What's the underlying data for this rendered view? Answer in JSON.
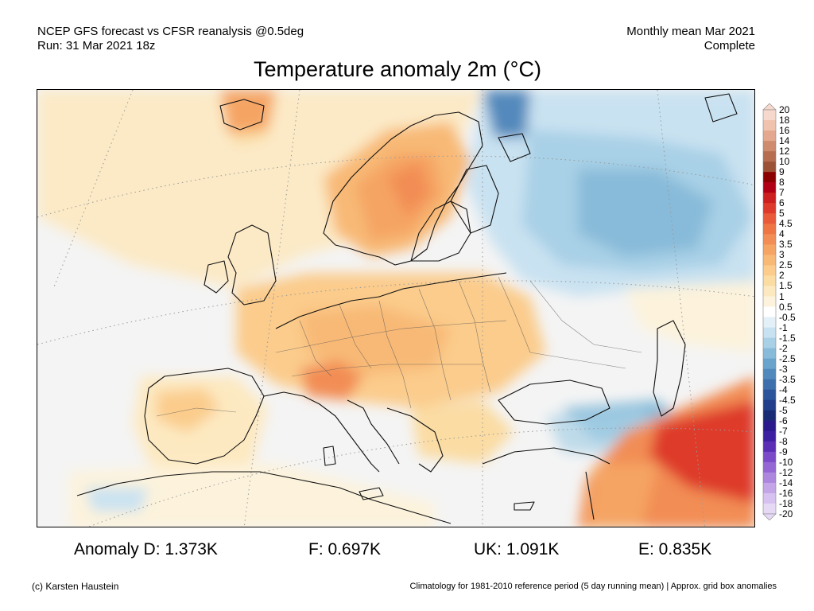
{
  "header": {
    "line1_left": "NCEP GFS forecast vs CFSR reanalysis @0.5deg",
    "line2_left": "Run: 31 Mar 2021 18z",
    "line1_right": "Monthly mean Mar 2021",
    "line2_right": "Complete"
  },
  "title": "Temperature anomaly 2m (°C)",
  "colorbar": {
    "labels": [
      "20",
      "18",
      "16",
      "14",
      "12",
      "10",
      "9",
      "8",
      "7",
      "6",
      "5",
      "4.5",
      "4",
      "3.5",
      "3",
      "2.5",
      "2",
      "1.5",
      "1",
      "0.5",
      "-0.5",
      "-1",
      "-1.5",
      "-2",
      "-2.5",
      "-3",
      "-3.5",
      "-4",
      "-4.5",
      "-5",
      "-6",
      "-7",
      "-8",
      "-9",
      "-10",
      "-12",
      "-14",
      "-16",
      "-18",
      "-20"
    ],
    "colors": [
      "#f6d9cc",
      "#efc3ae",
      "#e3a88d",
      "#cf8b6d",
      "#b66e51",
      "#9c5237",
      "#8b0000",
      "#b10016",
      "#cc1f1f",
      "#de3a2c",
      "#e85a3a",
      "#ee7645",
      "#f28d55",
      "#f5a463",
      "#f8b976",
      "#fbcc8c",
      "#fbdca3",
      "#fde9c1",
      "#fdf3dc",
      "#ffffff",
      "#e3f0f8",
      "#c9e2f1",
      "#a8d0e6",
      "#88bbd9",
      "#6aa4cc",
      "#5289bc",
      "#3d6fac",
      "#2d559b",
      "#213f8a",
      "#1a2b75",
      "#2a1a8c",
      "#3d20a2",
      "#5a2fb6",
      "#7a4ac8",
      "#9467d4",
      "#ad86de",
      "#c4a6e8",
      "#d6c1f0",
      "#e6d9f6"
    ]
  },
  "anomalies": [
    {
      "label": "Anomaly D: 1.373K"
    },
    {
      "label": "F: 0.697K"
    },
    {
      "label": "UK: 1.091K"
    },
    {
      "label": "E: 0.835K"
    }
  ],
  "footer": {
    "left": "(c) Karsten Haustein",
    "right": "Climatology for 1981-2010 reference period (5 day running mean) | Approx. grid box anomalies"
  }
}
